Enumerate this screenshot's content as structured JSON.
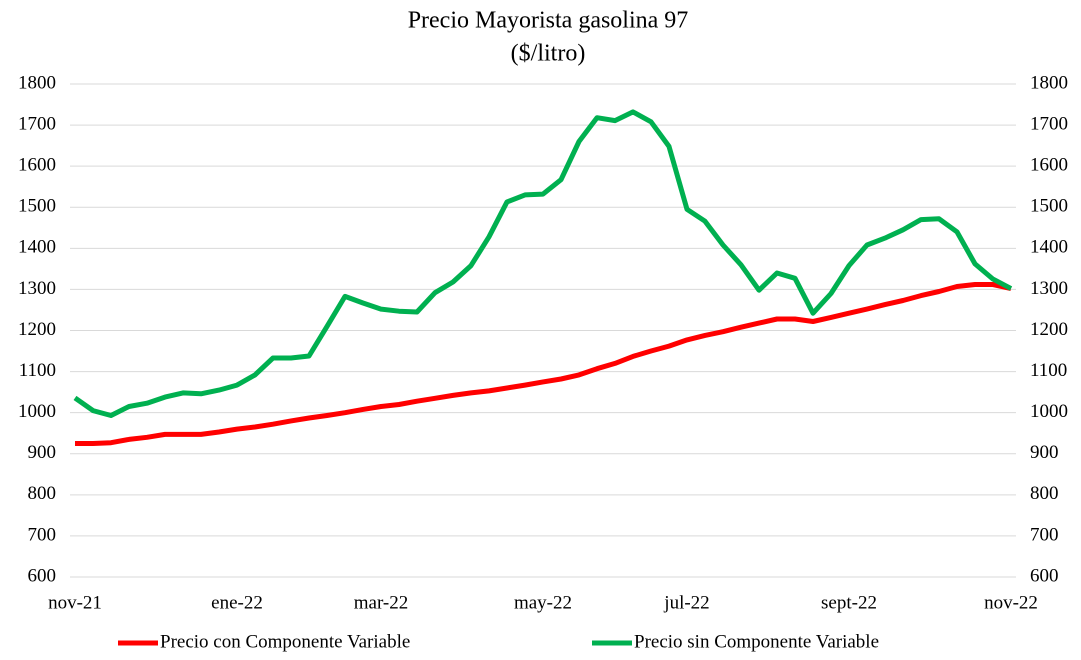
{
  "chart_data": {
    "type": "line",
    "title": "Precio Mayorista gasolina 97",
    "subtitle": "($/litro)",
    "categories": [
      "nov-21",
      null,
      null,
      null,
      null,
      null,
      null,
      null,
      null,
      "ene-22",
      null,
      null,
      null,
      null,
      null,
      null,
      null,
      "mar-22",
      null,
      null,
      null,
      null,
      null,
      null,
      null,
      null,
      "may-22",
      null,
      null,
      null,
      null,
      null,
      null,
      null,
      "jul-22",
      null,
      null,
      null,
      null,
      null,
      null,
      null,
      null,
      "sept-22",
      null,
      null,
      null,
      null,
      null,
      null,
      null,
      null,
      "nov-22"
    ],
    "series": [
      {
        "name": "Precio con Componente Variable",
        "color": "#ff0000",
        "values": [
          925,
          925,
          927,
          935,
          940,
          947,
          947,
          947,
          953,
          960,
          965,
          972,
          980,
          987,
          993,
          1000,
          1008,
          1015,
          1020,
          1028,
          1035,
          1042,
          1048,
          1053,
          1060,
          1067,
          1075,
          1082,
          1092,
          1107,
          1120,
          1137,
          1150,
          1162,
          1177,
          1188,
          1197,
          1208,
          1218,
          1228,
          1228,
          1222,
          1232,
          1242,
          1252,
          1263,
          1273,
          1285,
          1295,
          1307,
          1312,
          1312,
          1302
        ]
      },
      {
        "name": "Precio sin Componente Variable",
        "color": "#00b050",
        "values": [
          1036,
          1005,
          993,
          1015,
          1023,
          1038,
          1048,
          1046,
          1055,
          1067,
          1092,
          1133,
          1133,
          1138,
          1210,
          1283,
          1267,
          1252,
          1247,
          1245,
          1292,
          1318,
          1358,
          1428,
          1513,
          1530,
          1532,
          1567,
          1660,
          1718,
          1711,
          1732,
          1708,
          1648,
          1495,
          1466,
          1408,
          1360,
          1298,
          1340,
          1327,
          1242,
          1290,
          1358,
          1408,
          1425,
          1445,
          1470,
          1472,
          1440,
          1362,
          1325,
          1302
        ]
      }
    ],
    "ylim": [
      600,
      1800
    ],
    "yticks": [
      600,
      700,
      800,
      900,
      1000,
      1100,
      1200,
      1300,
      1400,
      1500,
      1600,
      1700,
      1800
    ],
    "y2lim": [
      600,
      1800
    ],
    "y2ticks": [
      600,
      700,
      800,
      900,
      1000,
      1100,
      1200,
      1300,
      1400,
      1500,
      1600,
      1700,
      1800
    ],
    "grid": true,
    "legend": "bottom"
  }
}
